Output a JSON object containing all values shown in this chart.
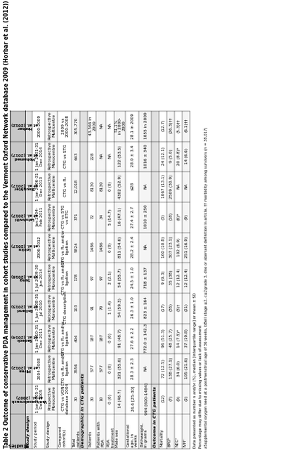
{
  "title": "Table 2 Outcome of conservative PDA management in cohort studies compared to the Vermont Oxford Network database 2009 (Horbar et al. (2012))",
  "footnote1": "Data presented as number n and/or (%), median [interquartile range] or mean ± SD",
  "footnote2": "Percentage may differ due to missing values or lack of assessment",
  "footnote3": "aSupplemental oxygen need at a postmenstrual age of 36 weeks, bBell stage ≥2, c≥2grade 3, dno or aberrant definition in article, †† morbidity among survivors (n = 38,017)",
  "col_headers": [
    "Studies",
    "Vanhaesebrouck\net al. (2007)",
    "Mirea\net al. (2012)",
    "Sadeck\net al. (2014)",
    "Rolland\net al. (2015)",
    "Sung\net al. (2016)",
    "Lokku\net al. (2017)",
    "Letshwiti\net al. (2017)",
    "Slaughter\net al. (2017)",
    "Mohamed\net al. (2017)",
    "Horbar\net al. (2012)"
  ],
  "row_groups": [
    {
      "group": "Study design",
      "rows": [
        [
          "Study period",
          "1 Jan 2005-31\nDec 2005",
          "2004-2008",
          "1 Jan 2010-31\nDec 2011",
          "1 Jun 2008-31\nJul 2010",
          "1 Jul 2009-30\nJun 2014",
          "2006-2012",
          "Jan 2004-\nFeb 2011",
          "1 Jan 2006-31\nDec 2013",
          "1 Jan 2001-31\nDec 2014",
          "2000-2009"
        ],
        [
          "Study design",
          "Prospective\nMonocentre",
          "Retrospective\nMulticentre",
          "Retrospective\nMulticentre",
          "Retrospective\nMonocentre",
          "Retrospective\nMonocentre",
          "Retrospective\nMulticentre",
          "Retrospective\nMonocentre",
          "Retrospective\nMulticentre",
          "Retrospective\nMonocentre",
          "Retrospective\nMulticentre"
        ],
        [
          "Compared\ncohort(s)",
          "CTG vs VON\ndatabase 2004",
          "CTG vs Rₓ and/or\nligation",
          "CTG vs Rₓ and/or\nligation",
          "CTG description",
          "CTG vs Rₓ and/or\nligation",
          "CTG vs Rₓ and/or\nligation",
          "CTG vs STG\nvs ETG",
          "CTG vs Rₓ",
          "CTG vs STG",
          "2009 vs\n2000-2008"
        ],
        [
          "Total\npatients",
          "30",
          "3556",
          "494",
          "103",
          "178",
          "5824",
          "371",
          "12,018",
          "643",
          "305,770"
        ]
      ]
    },
    {
      "group": "Demographics in CTG patients",
      "rows": [
        [
          "Patients",
          "30",
          "577",
          "187",
          "91",
          "97",
          "1486",
          "72",
          "8130",
          "228",
          "43,566 in\n2009"
        ],
        [
          "Patients with\nPDA",
          "10",
          "577",
          "187",
          "70",
          "97",
          "1486",
          "34",
          "8130",
          "NA",
          "NA"
        ],
        [
          "PDA\ntreatment",
          "0 (0)",
          "0 (0)",
          "0 (0)",
          "1 (1.4)",
          "2 (2.1)",
          "0 (0)",
          "5 (14.7)",
          "0 (0)",
          "NA",
          "NA"
        ],
        [
          "Male sex",
          "14 (46.7)",
          "321 (55.6)",
          "91 (48.7)",
          "54 (59.3)",
          "54 (55.7)",
          "811 (54.6)",
          "16 (47.1)",
          "4302 (52.9)",
          "122 (53.5)",
          "51.1%\nin 2000-\n2009"
        ],
        [
          "Gestational\nage, in\nweeks",
          "26.6 [25-30]",
          "28.3 ± 2.3",
          "27.6 ± 2.2",
          "26.3 ± 1.0",
          "24.5 ± 1.0",
          "28.2 ± 2.4",
          "27.4 ± 2.7",
          "≤28",
          "28.0 ± 3.4",
          "28.1 in 2009"
        ],
        [
          "Birthweight,\nin grams",
          "994 [600-1484]",
          "NA",
          "772.0 ± 142.3",
          "823 ± 164",
          "718 ± 137",
          "NA",
          "1010 ± 250",
          "NA",
          "1016 ± 340",
          "1055 in 2009"
        ]
      ]
    },
    {
      "group": "Outcome in CTG patients",
      "rows": [
        [
          "Mortality",
          "(12)",
          "72 (12.5)",
          "96 (51.3)",
          "(17)",
          "9 (9.3)",
          "160 (10.8)",
          "(3)",
          "1067 (13.1)",
          "24 (12.1)",
          "(12.7)"
        ],
        [
          "BPDᵇ",
          "(7)",
          "138 (27.1)",
          "48 (25.7)",
          "(35)",
          "35 (38)",
          "307 (23.1)",
          "(18)",
          "2509 (30.9)",
          "9 (5.0)",
          "(26.3)††"
        ],
        [
          "NECᶜ",
          "(0)",
          "34 (6.0)",
          "14 (7.5)*",
          "(3)†",
          "12 (12.4)",
          "102 (6.9)",
          "(6)*",
          "NA",
          "20 (8.8)*",
          "(5.3)††"
        ],
        [
          "IVHᶟ",
          "(2)",
          "105 (21.6)",
          "37 (19.8)",
          "(21)",
          "12 (12.4)",
          "251 (16.9)",
          "(9)",
          "NA",
          "14 (6.6)",
          "(6.1)††"
        ]
      ]
    }
  ],
  "bg_group": "#e0e0e0",
  "bg_even": "#ffffff",
  "bg_odd": "#f5f5f5",
  "bg_header": "#c8c8c8"
}
